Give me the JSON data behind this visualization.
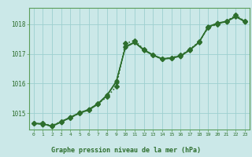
{
  "background_color": "#cbe8e8",
  "plot_bg_color": "#cbe8e8",
  "grid_color": "#9dcfcf",
  "line_color": "#2d6e2d",
  "border_color": "#5a9e5a",
  "title": "Graphe pression niveau de la mer (hPa)",
  "xlim": [
    -0.5,
    23.5
  ],
  "ylim": [
    1014.45,
    1018.55
  ],
  "yticks": [
    1015,
    1016,
    1017,
    1018
  ],
  "xticks": [
    0,
    1,
    2,
    3,
    4,
    5,
    6,
    7,
    8,
    9,
    10,
    11,
    12,
    13,
    14,
    15,
    16,
    17,
    18,
    19,
    20,
    21,
    22,
    23
  ],
  "series": [
    {
      "x": [
        0,
        1,
        2,
        3,
        4,
        5,
        6,
        7,
        8,
        9,
        10,
        11,
        12,
        13,
        14,
        15,
        16,
        17,
        18,
        19,
        20,
        21,
        22,
        23
      ],
      "y": [
        1014.65,
        1014.65,
        1014.58,
        1014.72,
        1014.85,
        1015.0,
        1015.12,
        1015.32,
        1015.55,
        1015.9,
        1017.35,
        1017.45,
        1017.15,
        1016.95,
        1016.82,
        1016.87,
        1016.95,
        1017.15,
        1017.4,
        1017.88,
        1018.0,
        1018.1,
        1018.3,
        1018.1
      ],
      "style": ":",
      "marker": "D",
      "markersize": 3.0,
      "linewidth": 1.2
    },
    {
      "x": [
        0,
        1,
        2,
        3,
        4,
        5,
        6,
        7,
        8,
        9,
        10,
        11,
        12,
        13,
        14,
        15,
        16,
        17,
        18,
        19,
        20,
        21,
        22,
        23
      ],
      "y": [
        1014.65,
        1014.65,
        1014.55,
        1014.7,
        1014.85,
        1015.0,
        1015.1,
        1015.3,
        1015.6,
        1016.05,
        1017.22,
        1017.38,
        1017.12,
        1016.95,
        1016.82,
        1016.85,
        1016.92,
        1017.12,
        1017.38,
        1017.9,
        1018.02,
        1018.08,
        1018.25,
        1018.08
      ],
      "style": "-",
      "marker": "D",
      "markersize": 2.5,
      "linewidth": 1.0
    },
    {
      "x": [
        0,
        1,
        2,
        3,
        4,
        5,
        6,
        7,
        8,
        9,
        10,
        11,
        12,
        13,
        14,
        15,
        16,
        17,
        18,
        19,
        20,
        21,
        22,
        23
      ],
      "y": [
        1014.65,
        1014.65,
        1014.57,
        1014.72,
        1014.87,
        1015.02,
        1015.13,
        1015.33,
        1015.62,
        1016.08,
        1017.25,
        1017.4,
        1017.15,
        1016.97,
        1016.84,
        1016.87,
        1016.94,
        1017.14,
        1017.4,
        1017.92,
        1018.04,
        1018.1,
        1018.27,
        1018.1
      ],
      "style": "-",
      "marker": "D",
      "markersize": 2.5,
      "linewidth": 0.9
    },
    {
      "x": [
        0,
        1,
        2,
        3,
        4,
        5,
        6,
        7,
        8,
        9,
        10,
        11,
        12,
        13,
        14,
        15,
        16,
        17,
        18,
        19,
        20,
        21,
        22,
        23
      ],
      "y": [
        1014.65,
        1014.62,
        1014.56,
        1014.71,
        1014.86,
        1015.01,
        1015.11,
        1015.31,
        1015.61,
        1016.06,
        1017.23,
        1017.39,
        1017.13,
        1016.96,
        1016.83,
        1016.86,
        1016.93,
        1017.13,
        1017.39,
        1017.91,
        1018.03,
        1018.09,
        1018.26,
        1018.09
      ],
      "style": "--",
      "marker": "D",
      "markersize": 2.5,
      "linewidth": 0.8
    }
  ]
}
